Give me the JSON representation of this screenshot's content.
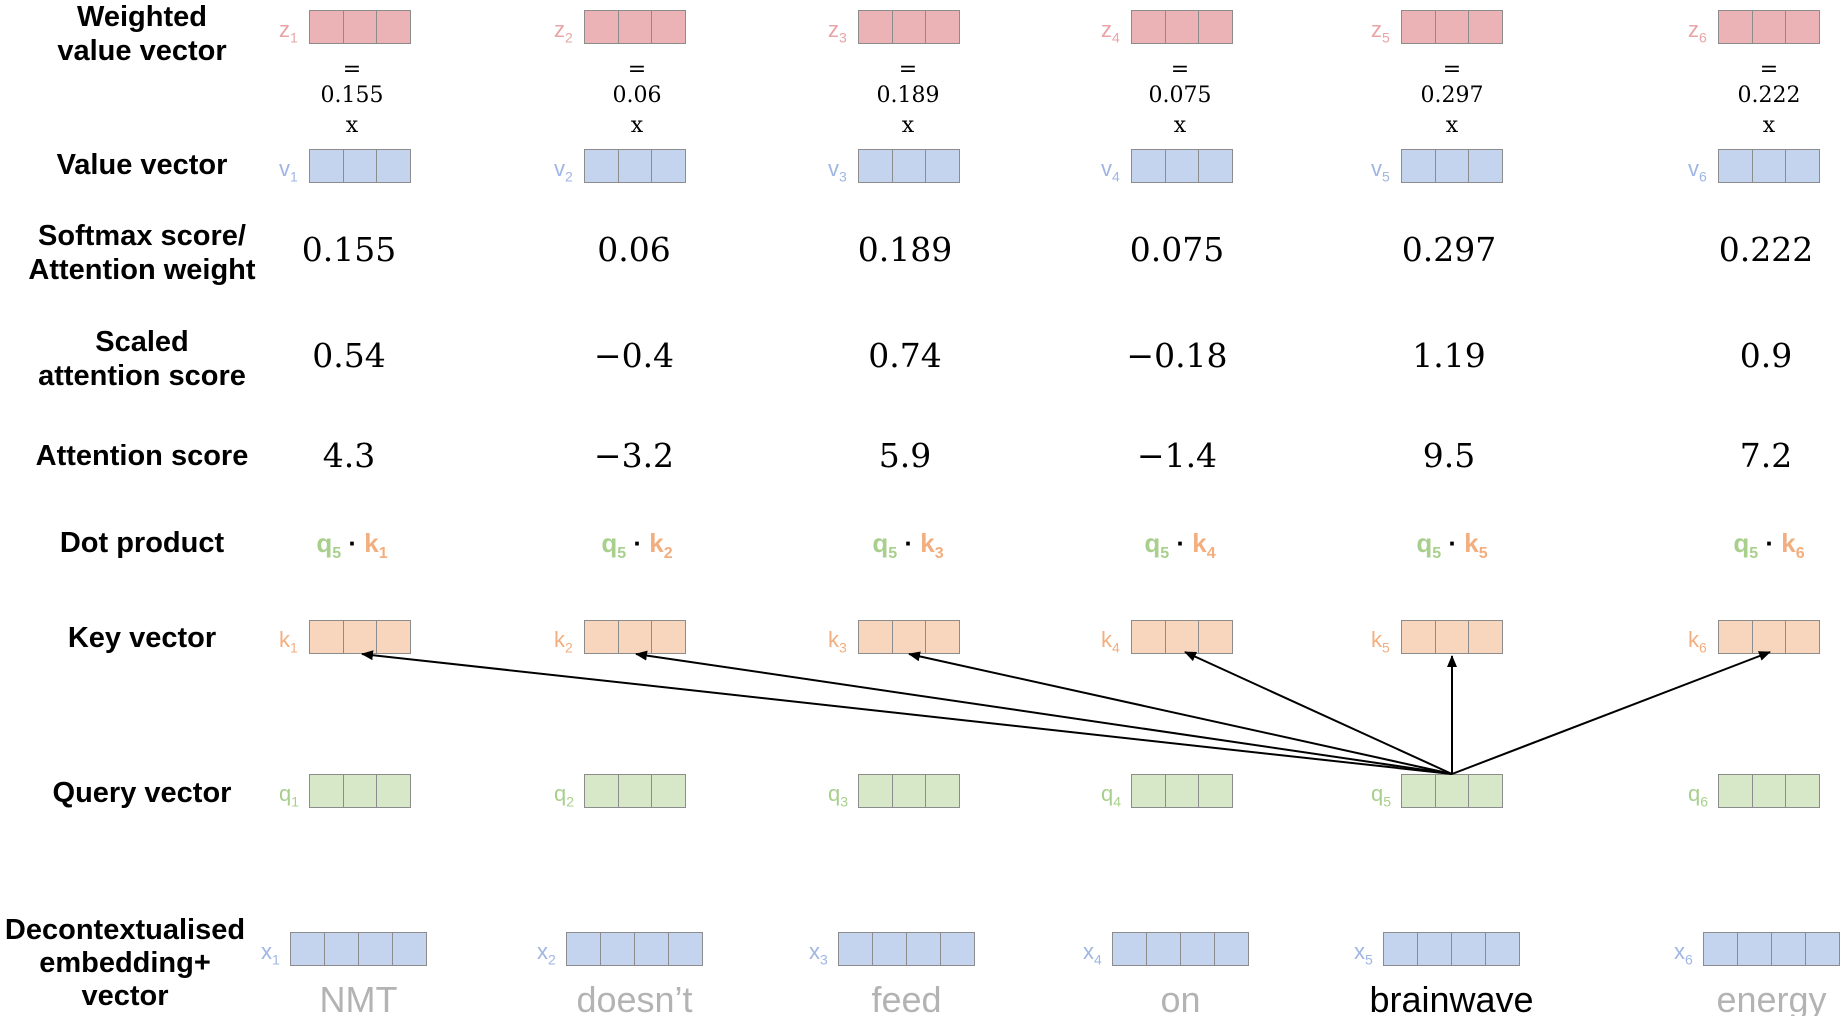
{
  "labels": {
    "weighted": "Weighted\nvalue vector",
    "value": "Value vector",
    "softmax": "Softmax score/\nAttention weight",
    "scaled": "Scaled\nattention score",
    "attention": "Attention score",
    "dot": "Dot product",
    "key": "Key vector",
    "query": "Query vector",
    "embedding": "Decontextualised\nembedding+\nvector"
  },
  "equals_sign": "=",
  "times_sign": "x",
  "dot_operator": "·",
  "symbols": {
    "z": "z",
    "v": "v",
    "k": "k",
    "q": "q",
    "x": "x"
  },
  "query_index": "5",
  "colors": {
    "z_fill": "#ebb3b5",
    "v_fill": "#c5d4ee",
    "k_fill": "#f8d5bd",
    "q_fill": "#d6e8c7",
    "z_text": "#e8a4a6",
    "v_text": "#9fb6e4",
    "k_text": "#f2ae7e",
    "q_text": "#a9cf8d",
    "word_inactive": "#b3b3b3",
    "word_active": "#000000"
  },
  "columns": [
    {
      "index": "1",
      "weight": "0.155",
      "scaled": "0.54",
      "score": "4.3",
      "word": "NMT",
      "active": false
    },
    {
      "index": "2",
      "weight": "0.06",
      "scaled": "−0.4",
      "score": "−3.2",
      "word": "doesn’t",
      "active": false
    },
    {
      "index": "3",
      "weight": "0.189",
      "scaled": "0.74",
      "score": "5.9",
      "word": "feed",
      "active": false
    },
    {
      "index": "4",
      "weight": "0.075",
      "scaled": "−0.18",
      "score": "−1.4",
      "word": "on",
      "active": false
    },
    {
      "index": "5",
      "weight": "0.297",
      "scaled": "1.19",
      "score": "9.5",
      "word": "brainwave",
      "active": true
    },
    {
      "index": "6",
      "weight": "0.222",
      "scaled": "0.9",
      "score": "7.2",
      "word": "energy",
      "active": false
    }
  ]
}
